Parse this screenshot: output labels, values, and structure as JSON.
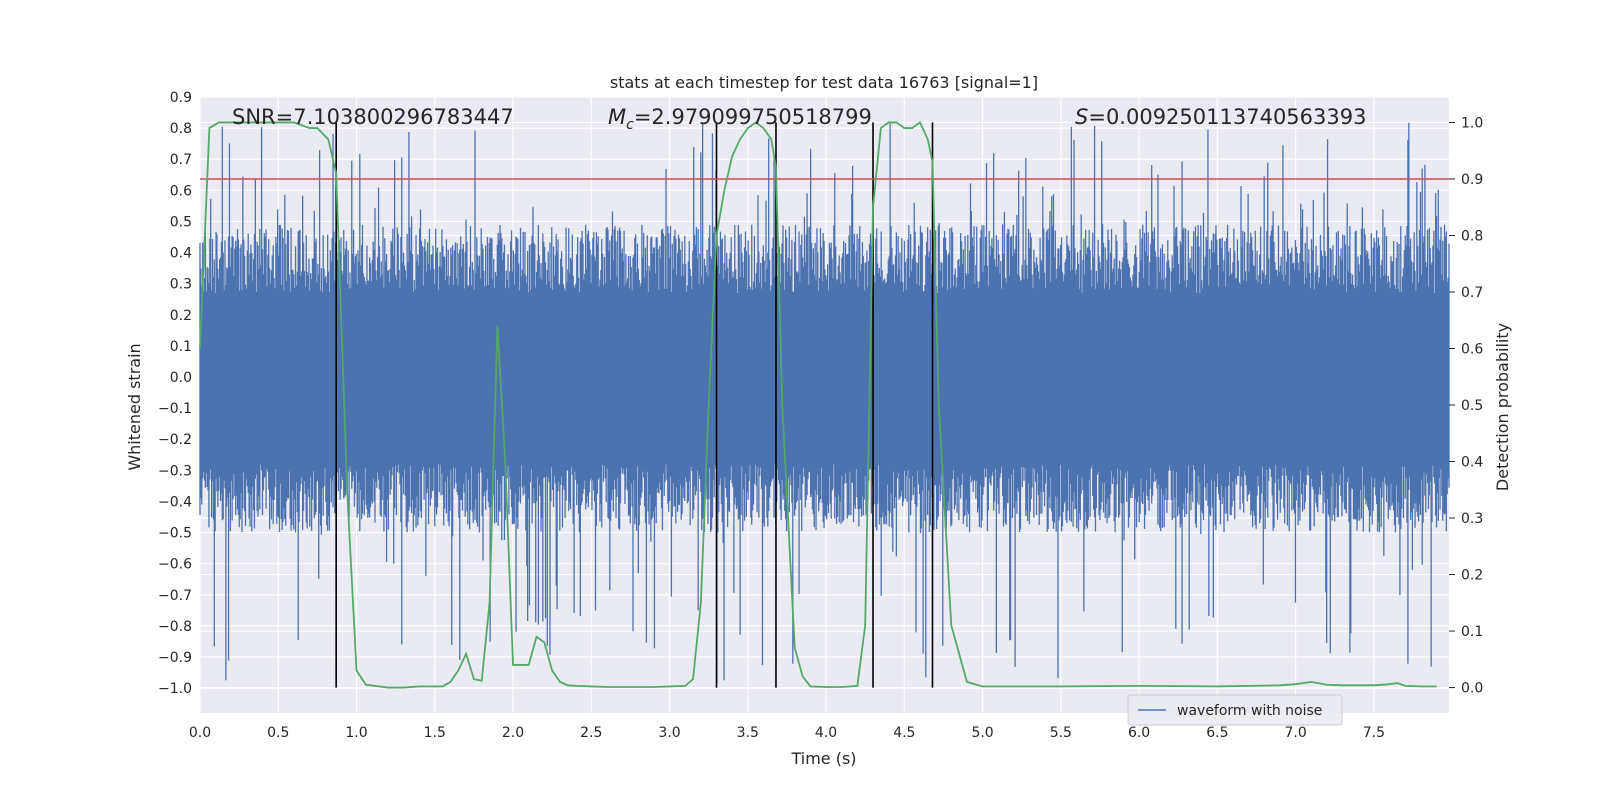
{
  "chart_data": {
    "type": "line",
    "title": "stats at each timestep for test data 16763 [signal=1]",
    "xlabel": "Time (s)",
    "ylabel_left": "Whitened strain",
    "ylabel_right": "Detection probability",
    "xlim": [
      0.0,
      7.98
    ],
    "ylim_left": [
      -1.08,
      0.9
    ],
    "ylim_right": [
      -0.045,
      1.045
    ],
    "x_ticks": [
      "0.0",
      "0.5",
      "1.0",
      "1.5",
      "2.0",
      "2.5",
      "3.0",
      "3.5",
      "4.0",
      "4.5",
      "5.0",
      "5.5",
      "6.0",
      "6.5",
      "7.0",
      "7.5"
    ],
    "x_tick_values": [
      0.0,
      0.5,
      1.0,
      1.5,
      2.0,
      2.5,
      3.0,
      3.5,
      4.0,
      4.5,
      5.0,
      5.5,
      6.0,
      6.5,
      7.0,
      7.5
    ],
    "y_left_ticks": [
      "0.9",
      "0.8",
      "0.7",
      "0.6",
      "0.5",
      "0.4",
      "0.3",
      "0.2",
      "0.1",
      "0.0",
      "−0.1",
      "−0.2",
      "−0.3",
      "−0.4",
      "−0.5",
      "−0.6",
      "−0.7",
      "−0.8",
      "−0.9",
      "−1.0"
    ],
    "y_left_tick_values": [
      0.9,
      0.8,
      0.7,
      0.6,
      0.5,
      0.4,
      0.3,
      0.2,
      0.1,
      0.0,
      -0.1,
      -0.2,
      -0.3,
      -0.4,
      -0.5,
      -0.6,
      -0.7,
      -0.8,
      -0.9,
      -1.0
    ],
    "y_right_ticks": [
      "1.0",
      "0.9",
      "0.8",
      "0.7",
      "0.6",
      "0.5",
      "0.4",
      "0.3",
      "0.2",
      "0.1",
      "0.0"
    ],
    "y_right_tick_values": [
      1.0,
      0.9,
      0.8,
      0.7,
      0.6,
      0.5,
      0.4,
      0.3,
      0.2,
      0.1,
      0.0
    ],
    "annotations": {
      "snr": "SNR=7.103800296783447",
      "mc": "=2.979099750518799",
      "mc_symbol": "M",
      "mc_sub": "c",
      "s": "=0.009250113740563393",
      "s_symbol": "S"
    },
    "threshold": 0.9,
    "vertical_lines": [
      0.87,
      3.3,
      3.68,
      4.3,
      4.68
    ],
    "series": [
      {
        "name": "waveform with noise",
        "color": "#4c72b0",
        "axis": "left",
        "envelope": {
          "body_low": -0.28,
          "body_high": 0.27,
          "spike_low": -1.0,
          "spike_high": 0.82,
          "samples": 8000
        }
      },
      {
        "name": "detection probability",
        "color": "#55a868",
        "axis": "right",
        "x": [
          0.0,
          0.06,
          0.12,
          0.2,
          0.3,
          0.4,
          0.5,
          0.6,
          0.7,
          0.75,
          0.82,
          0.87,
          0.94,
          1.0,
          1.06,
          1.2,
          1.3,
          1.4,
          1.5,
          1.55,
          1.6,
          1.65,
          1.7,
          1.75,
          1.8,
          1.85,
          1.9,
          1.95,
          2.0,
          2.05,
          2.1,
          2.15,
          2.2,
          2.25,
          2.3,
          2.35,
          2.4,
          2.5,
          2.6,
          2.7,
          2.8,
          2.9,
          3.0,
          3.1,
          3.15,
          3.2,
          3.25,
          3.3,
          3.35,
          3.4,
          3.45,
          3.5,
          3.55,
          3.6,
          3.65,
          3.68,
          3.72,
          3.8,
          3.85,
          3.9,
          4.0,
          4.1,
          4.2,
          4.25,
          4.3,
          4.35,
          4.4,
          4.45,
          4.5,
          4.55,
          4.6,
          4.65,
          4.68,
          4.72,
          4.8,
          4.9,
          5.0,
          5.5,
          6.0,
          6.5,
          6.9,
          7.0,
          7.1,
          7.2,
          7.3,
          7.5,
          7.6,
          7.65,
          7.7,
          7.8,
          7.9
        ],
        "y": [
          0.6,
          0.99,
          1.0,
          1.0,
          1.0,
          1.0,
          1.0,
          1.0,
          0.99,
          0.99,
          0.97,
          0.91,
          0.35,
          0.03,
          0.005,
          0.0,
          0.0,
          0.002,
          0.002,
          0.002,
          0.01,
          0.03,
          0.06,
          0.015,
          0.012,
          0.15,
          0.64,
          0.4,
          0.04,
          0.04,
          0.04,
          0.09,
          0.08,
          0.03,
          0.01,
          0.004,
          0.003,
          0.002,
          0.001,
          0.001,
          0.001,
          0.001,
          0.002,
          0.003,
          0.015,
          0.15,
          0.5,
          0.8,
          0.88,
          0.94,
          0.97,
          0.99,
          1.0,
          0.99,
          0.97,
          0.92,
          0.5,
          0.07,
          0.02,
          0.002,
          0.001,
          0.001,
          0.003,
          0.11,
          0.85,
          0.99,
          1.0,
          1.0,
          0.99,
          0.99,
          1.0,
          0.97,
          0.93,
          0.5,
          0.11,
          0.01,
          0.002,
          0.002,
          0.003,
          0.002,
          0.004,
          0.006,
          0.01,
          0.005,
          0.004,
          0.004,
          0.006,
          0.008,
          0.003,
          0.002,
          0.002
        ]
      },
      {
        "name": "threshold",
        "color": "#c44e52",
        "axis": "right",
        "y": 0.9
      }
    ],
    "legend": {
      "placement": "lower-right",
      "label": "waveform with noise"
    },
    "grid": true
  },
  "colors": {
    "plot_bg": "#eaeaf2",
    "grid": "#ffffff",
    "strain": "#4c72b0",
    "probability": "#55a868",
    "threshold": "#c44e52",
    "vlines": "#000000"
  }
}
